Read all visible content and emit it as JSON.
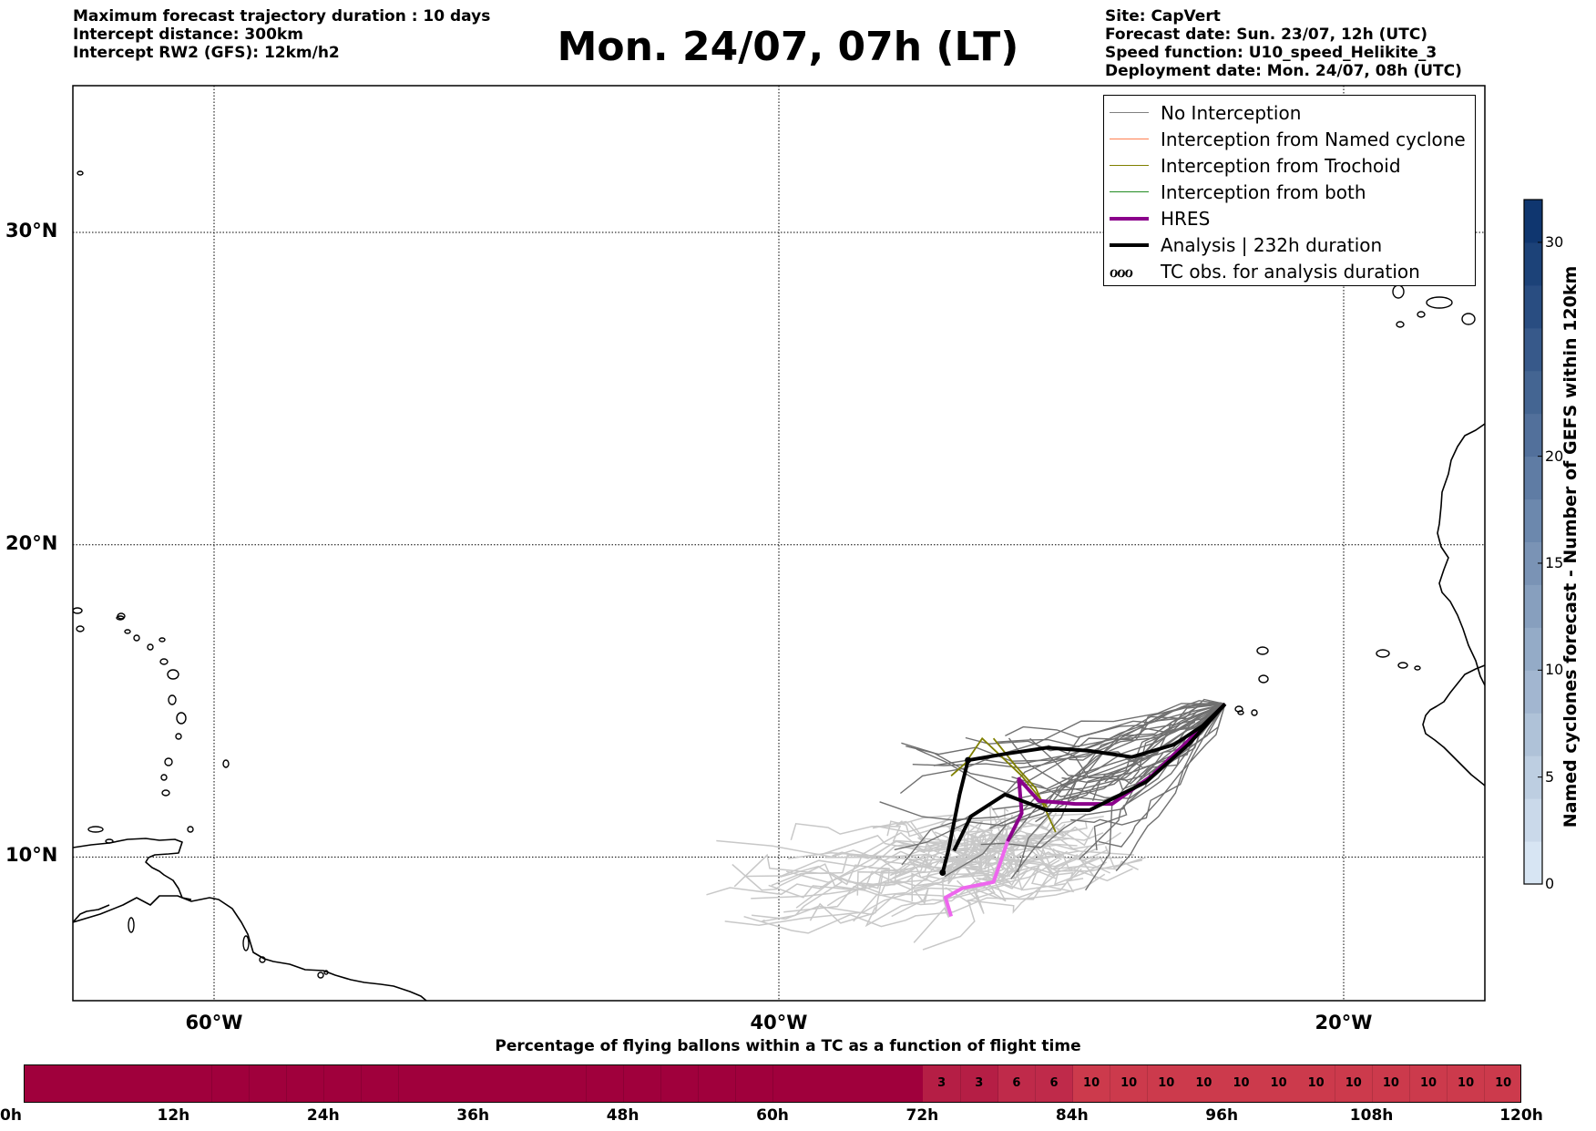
{
  "header": {
    "left_lines": [
      "Maximum forecast trajectory duration : 10 days",
      "Intercept distance: 300km",
      "Intercept RW2 (GFS):  12km/h2"
    ],
    "title": "Mon. 24/07, 07h (LT)",
    "right_lines": [
      "Site: CapVert",
      "Forecast date: Sun. 23/07, 12h (UTC)",
      "Speed function: U10_speed_Helikite_3",
      "Deployment date: Mon. 24/07, 08h (UTC)"
    ]
  },
  "map": {
    "extent": {
      "lon": [
        -65,
        -15
      ],
      "lat": [
        5.4,
        34.7
      ]
    },
    "lat_labels": [
      {
        "lat": 30,
        "label": "30°N"
      },
      {
        "lat": 20,
        "label": "20°N"
      },
      {
        "lat": 10,
        "label": "10°N"
      }
    ],
    "lon_labels": [
      {
        "lon": -60,
        "label": "60°W"
      },
      {
        "lon": -40,
        "label": "40°W"
      },
      {
        "lon": -20,
        "label": "20°W"
      }
    ],
    "launch_site": {
      "lon": -24.2,
      "lat": 14.9
    },
    "analysis_track": [
      [
        -24.2,
        14.9
      ],
      [
        -25.0,
        14.2
      ],
      [
        -26.0,
        13.6
      ],
      [
        -27.5,
        13.2
      ],
      [
        -29.0,
        13.4
      ],
      [
        -30.5,
        13.5
      ],
      [
        -32.0,
        13.3
      ],
      [
        -33.3,
        13.1
      ],
      [
        -33.6,
        12.0
      ],
      [
        -34.0,
        10.2
      ],
      [
        -34.2,
        9.5
      ]
    ],
    "analysis_track_2": [
      [
        -24.2,
        14.9
      ],
      [
        -25.5,
        13.6
      ],
      [
        -27.0,
        12.4
      ],
      [
        -29.0,
        11.5
      ],
      [
        -30.5,
        11.5
      ],
      [
        -32.0,
        12.0
      ],
      [
        -33.2,
        11.3
      ],
      [
        -33.8,
        10.2
      ]
    ],
    "hres_track": [
      [
        -24.2,
        14.9
      ],
      [
        -25.3,
        13.9
      ],
      [
        -26.8,
        12.6
      ],
      [
        -28.2,
        11.7
      ],
      [
        -29.5,
        11.7
      ],
      [
        -30.8,
        11.8
      ],
      [
        -31.5,
        12.5
      ],
      [
        -31.4,
        11.4
      ],
      [
        -31.9,
        10.5
      ],
      [
        -32.4,
        9.2
      ],
      [
        -33.5,
        9.0
      ],
      [
        -34.1,
        8.7
      ],
      [
        -33.9,
        8.1
      ]
    ],
    "trochoid_track": [
      [
        -30.5,
        11.6
      ],
      [
        -31.4,
        12.6
      ],
      [
        -32.1,
        13.2
      ],
      [
        -32.8,
        13.8
      ],
      [
        -33.4,
        13.0
      ],
      [
        -33.9,
        12.6
      ]
    ],
    "trochoid_track_2": [
      [
        -32.4,
        13.8
      ],
      [
        -31.6,
        12.9
      ],
      [
        -30.9,
        12.2
      ],
      [
        -30.2,
        10.8
      ]
    ]
  },
  "legend": {
    "items": [
      {
        "label": "No Interception",
        "color": "#808080",
        "width": 1.5
      },
      {
        "label": "Interception from Named cyclone",
        "color": "#ff7f50",
        "width": 1.5
      },
      {
        "label": "Interception from Trochoid",
        "color": "#808000",
        "width": 1.5
      },
      {
        "label": "Interception from both",
        "color": "#228b22",
        "width": 1.5
      },
      {
        "label": "HRES",
        "color": "#8b008b",
        "width": 4
      },
      {
        "label": "Analysis | 232h duration",
        "color": "#000000",
        "width": 4
      },
      {
        "label": "TC obs. for analysis duration",
        "glyph": "ℴℴℴ"
      }
    ]
  },
  "colorbar": {
    "title": "Named cyclones forecast - Number of GEFS within 120km",
    "min": 0,
    "max": 32,
    "ticks": [
      0,
      5,
      10,
      15,
      20,
      30
    ],
    "low_color": "#deebf7",
    "high_color": "#08306b"
  },
  "timeline": {
    "title": "Percentage of flying ballons within a TC as a function of flight time",
    "tick_labels": [
      "0h",
      "12h",
      "24h",
      "36h",
      "48h",
      "60h",
      "72h",
      "84h",
      "96h",
      "108h",
      "120h"
    ],
    "step_hours": 3,
    "values": [
      0,
      0,
      0,
      0,
      0,
      0,
      0,
      0,
      0,
      0,
      0,
      0,
      0,
      0,
      0,
      0,
      0,
      0,
      0,
      0,
      0,
      0,
      0,
      0,
      3,
      3,
      6,
      6,
      10,
      10,
      10,
      10,
      10,
      10,
      10,
      10,
      10,
      10,
      10,
      10
    ],
    "colors": {
      "zero": "#a0003c",
      "low": "#b51e45",
      "mid": "#bf2a4a",
      "high": "#cc3a4c"
    }
  }
}
